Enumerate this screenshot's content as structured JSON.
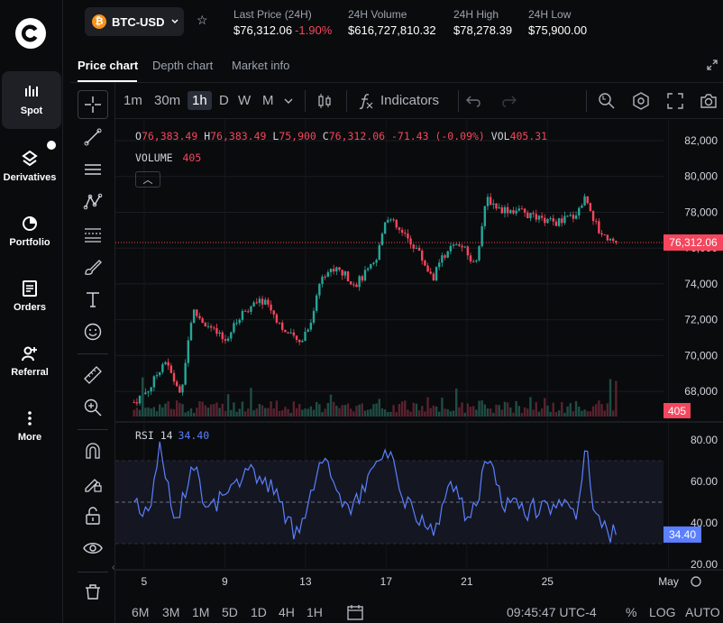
{
  "nav": {
    "items": [
      {
        "label": "Spot",
        "icon": "bar-chart-icon"
      },
      {
        "label": "Derivatives",
        "icon": "derivatives-icon"
      },
      {
        "label": "Portfolio",
        "icon": "pie-chart-icon"
      },
      {
        "label": "Orders",
        "icon": "orders-icon"
      },
      {
        "label": "Referral",
        "icon": "add-user-icon"
      },
      {
        "label": "More",
        "icon": "more-vertical-icon"
      }
    ]
  },
  "header": {
    "pair": "BTC-USD",
    "coin_symbol": "₿",
    "stats": [
      {
        "key": "Last Price (24H)",
        "value": "$76,312.06",
        "change": "-1.90%"
      },
      {
        "key": "24H Volume",
        "value": "$616,727,810.32"
      },
      {
        "key": "24H High",
        "value": "$78,278.39"
      },
      {
        "key": "24H Low",
        "value": "$75,900.00"
      }
    ]
  },
  "tabs": [
    "Price chart",
    "Depth chart",
    "Market info"
  ],
  "toolbar": {
    "timeframes": [
      "1m",
      "30m",
      "1h",
      "D",
      "W",
      "M"
    ],
    "active_timeframe": "1h",
    "indicators_label": "Indicators"
  },
  "legend": {
    "o_key": "O",
    "o": "76,383.49",
    "h_key": "H",
    "h": "76,383.49",
    "l_key": "L",
    "l": "75,900",
    "c_key": "C",
    "c": "76,312.06",
    "change": "-71.43 (-0.09%)",
    "vol_key": "VOL",
    "vol": "405.31",
    "volume_label": "VOLUME",
    "volume_value": "405",
    "rsi_label": "RSI 14",
    "rsi_value": "34.40"
  },
  "chart_data": {
    "type": "candlestick",
    "price_axis": {
      "ticks": [
        "82,000",
        "80,000",
        "78,000",
        "76,000",
        "74,000",
        "72,000",
        "70,000",
        "68,000"
      ],
      "range": [
        67000,
        82000
      ]
    },
    "rsi_axis": {
      "ticks": [
        "80.00",
        "60.00",
        "40.00",
        "20.00"
      ],
      "range": [
        20,
        80
      ],
      "midline": 50,
      "band": [
        30,
        70
      ]
    },
    "x_ticks": [
      "5",
      "9",
      "13",
      "17",
      "21",
      "25",
      "May"
    ],
    "last_price_label": "76,312.06",
    "last_volume_label": "405",
    "last_rsi_label": "34.40",
    "price_path": [
      {
        "day": 4.5,
        "price": 67400
      },
      {
        "day": 5.3,
        "price": 68200
      },
      {
        "day": 6.0,
        "price": 69800
      },
      {
        "day": 6.8,
        "price": 67800
      },
      {
        "day": 7.4,
        "price": 72500
      },
      {
        "day": 8.2,
        "price": 71600
      },
      {
        "day": 9.0,
        "price": 70800
      },
      {
        "day": 10.0,
        "price": 72600
      },
      {
        "day": 11.0,
        "price": 73100
      },
      {
        "day": 12.0,
        "price": 71300
      },
      {
        "day": 12.7,
        "price": 70700
      },
      {
        "day": 13.3,
        "price": 72000
      },
      {
        "day": 13.8,
        "price": 74600
      },
      {
        "day": 14.6,
        "price": 74800
      },
      {
        "day": 15.5,
        "price": 74000
      },
      {
        "day": 16.5,
        "price": 75200
      },
      {
        "day": 17.0,
        "price": 77900
      },
      {
        "day": 17.6,
        "price": 77000
      },
      {
        "day": 18.5,
        "price": 76000
      },
      {
        "day": 19.3,
        "price": 74300
      },
      {
        "day": 20.0,
        "price": 75900
      },
      {
        "day": 20.7,
        "price": 76200
      },
      {
        "day": 21.4,
        "price": 75000
      },
      {
        "day": 22.0,
        "price": 78800
      },
      {
        "day": 22.6,
        "price": 78200
      },
      {
        "day": 23.5,
        "price": 78100
      },
      {
        "day": 24.5,
        "price": 77600
      },
      {
        "day": 25.5,
        "price": 77400
      },
      {
        "day": 26.4,
        "price": 77900
      },
      {
        "day": 26.9,
        "price": 78900
      },
      {
        "day": 27.5,
        "price": 77000
      },
      {
        "day": 28.0,
        "price": 76600
      },
      {
        "day": 28.4,
        "price": 76312
      }
    ],
    "rsi_path": [
      {
        "day": 4.5,
        "rsi": 50
      },
      {
        "day": 5.2,
        "rsi": 45
      },
      {
        "day": 5.8,
        "rsi": 76
      },
      {
        "day": 6.6,
        "rsi": 38
      },
      {
        "day": 7.4,
        "rsi": 72
      },
      {
        "day": 8.2,
        "rsi": 43
      },
      {
        "day": 9.2,
        "rsi": 60
      },
      {
        "day": 10.4,
        "rsi": 64
      },
      {
        "day": 11.6,
        "rsi": 55
      },
      {
        "day": 12.5,
        "rsi": 32
      },
      {
        "day": 13.2,
        "rsi": 52
      },
      {
        "day": 13.9,
        "rsi": 73
      },
      {
        "day": 15.0,
        "rsi": 46
      },
      {
        "day": 16.2,
        "rsi": 60
      },
      {
        "day": 17.0,
        "rsi": 78
      },
      {
        "day": 17.8,
        "rsi": 53
      },
      {
        "day": 18.7,
        "rsi": 42
      },
      {
        "day": 19.4,
        "rsi": 34
      },
      {
        "day": 20.2,
        "rsi": 60
      },
      {
        "day": 21.0,
        "rsi": 44
      },
      {
        "day": 21.6,
        "rsi": 54
      },
      {
        "day": 22.1,
        "rsi": 74
      },
      {
        "day": 22.8,
        "rsi": 50
      },
      {
        "day": 24.0,
        "rsi": 46
      },
      {
        "day": 25.5,
        "rsi": 50
      },
      {
        "day": 26.5,
        "rsi": 42
      },
      {
        "day": 26.9,
        "rsi": 76
      },
      {
        "day": 27.4,
        "rsi": 40
      },
      {
        "day": 28.0,
        "rsi": 36
      },
      {
        "day": 28.4,
        "rsi": 34.4
      }
    ]
  },
  "bottom": {
    "ranges": [
      "6M",
      "3M",
      "1M",
      "5D",
      "1D",
      "4H",
      "1H"
    ],
    "clock": "09:45:47 UTC-4",
    "percent": "%",
    "log": "LOG",
    "auto": "AUTO"
  },
  "colors": {
    "up": "#26a69a",
    "down": "#f6465d",
    "rsi": "#5b7fff",
    "bg": "#0a0b0d"
  }
}
